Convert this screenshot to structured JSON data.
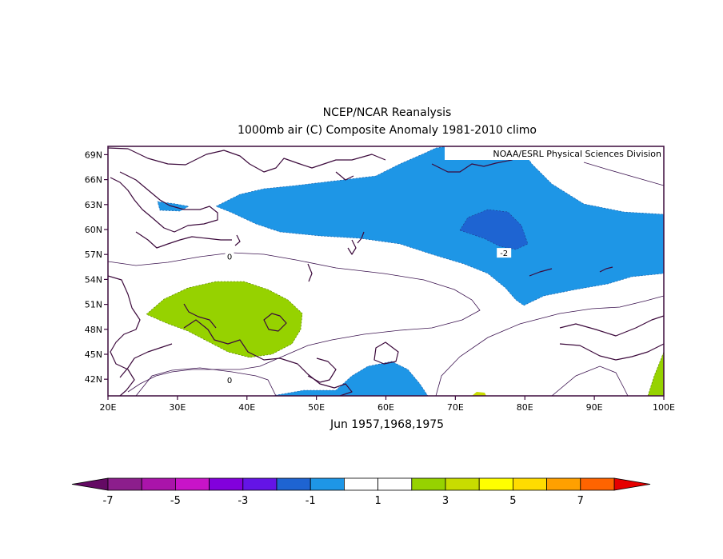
{
  "title": {
    "line1": "NCEP/NCAR Reanalysis",
    "line2": "1000mb air (C) Composite Anomaly 1981-2010 climo"
  },
  "credit": "NOAA/ESRL Physical Sciences Division",
  "subtitle": "Jun 1957,1968,1975",
  "map": {
    "lon_range": [
      20,
      100
    ],
    "lat_range": [
      40,
      70
    ],
    "lon_ticks": [
      "20E",
      "30E",
      "40E",
      "50E",
      "60E",
      "70E",
      "80E",
      "90E",
      "100E"
    ],
    "lat_ticks": [
      "69N",
      "66N",
      "63N",
      "60N",
      "57N",
      "54N",
      "51N",
      "48N",
      "45N",
      "42N"
    ],
    "contour_labels": [
      {
        "text": "0",
        "lon": 37.5,
        "lat": 56.8
      },
      {
        "text": "0",
        "lon": 37.5,
        "lat": 41.9
      },
      {
        "text": "-2",
        "lon": 77,
        "lat": 57.2
      }
    ],
    "colors": {
      "land_outline": "#3c0a3c",
      "contour_line": "#3c1450",
      "frame": "#3c0a3c"
    }
  },
  "colorbar": {
    "tick_labels": [
      "-7",
      "-5",
      "-3",
      "-1",
      "1",
      "3",
      "5",
      "7"
    ],
    "colors": [
      "#8c1e8c",
      "#aa14aa",
      "#c814c8",
      "#8200dc",
      "#6414e6",
      "#1e64d2",
      "#1e96e6",
      "#ffffff",
      "#ffffff",
      "#96d200",
      "#c8dc00",
      "#ffff00",
      "#ffdc00",
      "#ffa000",
      "#ff6400"
    ],
    "low_end_color": "#640a64",
    "high_end_color": "#e60000"
  }
}
